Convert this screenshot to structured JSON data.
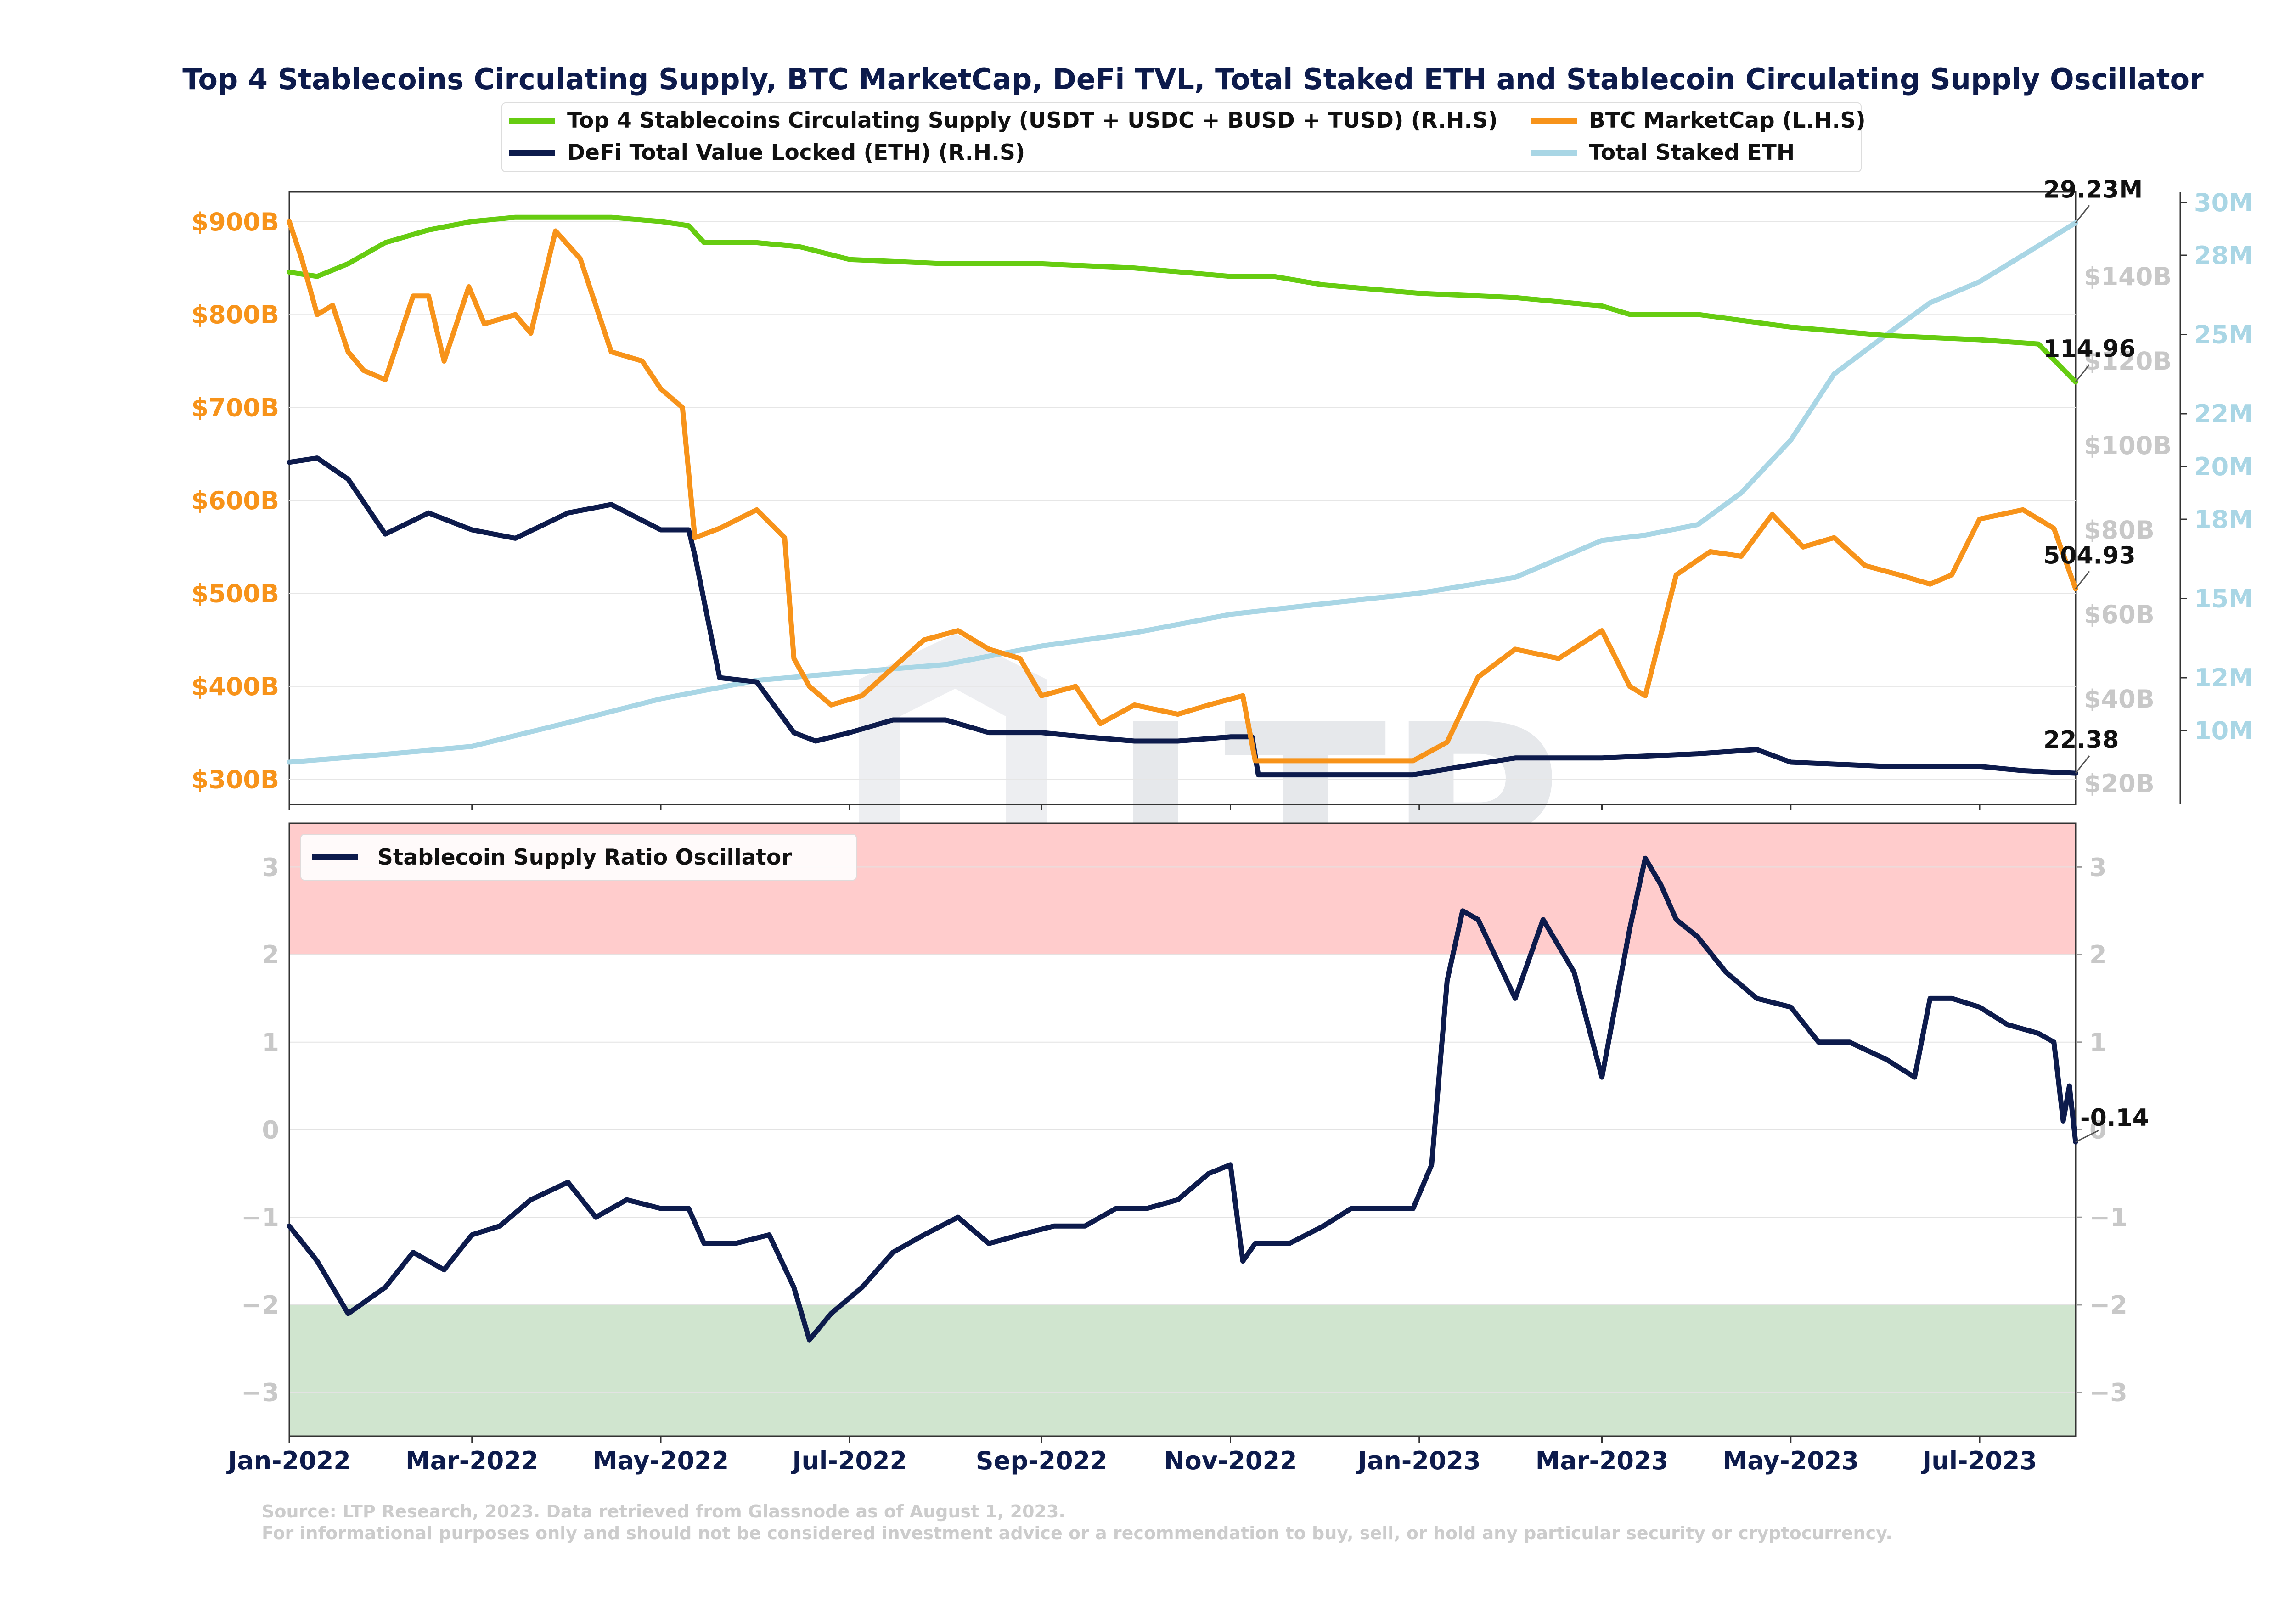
{
  "title": "Top 4 Stablecoins Circulating Supply, BTC MarketCap, DeFi TVL, Total Staked ETH and Stablecoin Circulating Supply Oscillator",
  "watermark": "LTP",
  "source_line1": "Source: LTP Research, 2023. Data retrieved from Glassnode as of August 1, 2023.",
  "source_line2": "For informational purposes only and should not be considered investment advice or a recommendation to buy, sell, or hold any particular security or cryptocurrency.",
  "colors": {
    "stable": "#66cc11",
    "btc": "#f7931a",
    "defi": "#0d1b4c",
    "staked": "#a9d6e5",
    "upper_band": "#ffcccc",
    "lower_band": "#d0e5cf"
  },
  "chart_data": [
    {
      "type": "line",
      "panel": "top",
      "x_ticks": [
        "Jan-2022",
        "Mar-2022",
        "May-2022",
        "Jul-2022",
        "Sep-2022",
        "Nov-2022",
        "Jan-2023",
        "Mar-2023",
        "May-2023",
        "Jul-2023"
      ],
      "xlim": [
        "2022-01-01",
        "2023-08-01"
      ],
      "left_axis": {
        "ticks": [
          "$300B",
          "$400B",
          "$500B",
          "$600B",
          "$700B",
          "$800B",
          "$900B"
        ],
        "ylim": [
          273,
          932
        ]
      },
      "right_axis_1": {
        "ticks": [
          "$20B",
          "$40B",
          "$60B",
          "$80B",
          "$100B",
          "$120B",
          "$140B"
        ],
        "ylim": [
          15,
          160
        ]
      },
      "right_axis_2": {
        "ticks": [
          "10M",
          "12M",
          "15M",
          "18M",
          "20M",
          "22M",
          "25M",
          "28M",
          "30M"
        ],
        "ylim": [
          7.2,
          30.4
        ]
      },
      "legend": [
        {
          "label": "Top 4 Stablecoins Circulating Supply (USDT + USDC + BUSD + TUSD) (R.H.S)",
          "color_key": "stable"
        },
        {
          "label": "BTC MarketCap (L.H.S)",
          "color_key": "btc"
        },
        {
          "label": "DeFi Total Value Locked (ETH) (R.H.S)",
          "color_key": "defi"
        },
        {
          "label": "Total Staked ETH",
          "color_key": "staked"
        }
      ],
      "series": [
        {
          "name": "Top 4 Stablecoins Circulating Supply (USDT + USDC + BUSD + TUSD) (R.H.S)",
          "axis": "right_axis_1",
          "color_key": "stable",
          "x": [
            "2022-01-01",
            "2022-01-10",
            "2022-01-20",
            "2022-02-01",
            "2022-02-15",
            "2022-03-01",
            "2022-03-15",
            "2022-04-01",
            "2022-04-15",
            "2022-05-01",
            "2022-05-10",
            "2022-05-15",
            "2022-06-01",
            "2022-06-15",
            "2022-07-01",
            "2022-08-01",
            "2022-09-01",
            "2022-10-01",
            "2022-11-01",
            "2022-11-15",
            "2022-12-01",
            "2023-01-01",
            "2023-02-01",
            "2023-03-01",
            "2023-03-10",
            "2023-04-01",
            "2023-05-01",
            "2023-06-01",
            "2023-07-01",
            "2023-07-20",
            "2023-08-01"
          ],
          "y": [
            141,
            140,
            143,
            148,
            151,
            153,
            154,
            154,
            154,
            153,
            152,
            148,
            148,
            147,
            144,
            143,
            143,
            142,
            140,
            140,
            138,
            136,
            135,
            133,
            131,
            131,
            128,
            126,
            125,
            124,
            115
          ]
        },
        {
          "name": "BTC MarketCap (L.H.S)",
          "axis": "left_axis",
          "color_key": "btc",
          "x": [
            "2022-01-01",
            "2022-01-05",
            "2022-01-10",
            "2022-01-15",
            "2022-01-20",
            "2022-01-25",
            "2022-02-01",
            "2022-02-10",
            "2022-02-15",
            "2022-02-20",
            "2022-02-28",
            "2022-03-05",
            "2022-03-15",
            "2022-03-20",
            "2022-03-28",
            "2022-04-05",
            "2022-04-15",
            "2022-04-25",
            "2022-05-01",
            "2022-05-08",
            "2022-05-12",
            "2022-05-20",
            "2022-06-01",
            "2022-06-10",
            "2022-06-13",
            "2022-06-18",
            "2022-06-25",
            "2022-07-05",
            "2022-07-15",
            "2022-07-25",
            "2022-08-05",
            "2022-08-15",
            "2022-08-25",
            "2022-09-01",
            "2022-09-12",
            "2022-09-20",
            "2022-10-01",
            "2022-10-15",
            "2022-10-25",
            "2022-11-05",
            "2022-11-09",
            "2022-11-20",
            "2022-12-01",
            "2022-12-15",
            "2022-12-30",
            "2023-01-10",
            "2023-01-20",
            "2023-02-01",
            "2023-02-15",
            "2023-03-01",
            "2023-03-10",
            "2023-03-15",
            "2023-03-25",
            "2023-04-05",
            "2023-04-15",
            "2023-04-25",
            "2023-05-05",
            "2023-05-15",
            "2023-05-25",
            "2023-06-05",
            "2023-06-15",
            "2023-06-22",
            "2023-07-01",
            "2023-07-15",
            "2023-07-25",
            "2023-08-01"
          ],
          "y": [
            900,
            860,
            800,
            810,
            760,
            740,
            730,
            820,
            820,
            750,
            830,
            790,
            800,
            780,
            890,
            860,
            760,
            750,
            720,
            700,
            560,
            570,
            590,
            560,
            430,
            400,
            380,
            390,
            420,
            450,
            460,
            440,
            430,
            390,
            400,
            360,
            380,
            370,
            380,
            390,
            320,
            320,
            320,
            320,
            320,
            340,
            410,
            440,
            430,
            460,
            400,
            390,
            520,
            545,
            540,
            585,
            550,
            560,
            530,
            520,
            510,
            520,
            580,
            590,
            570,
            505
          ]
        },
        {
          "name": "DeFi Total Value Locked (ETH) (R.H.S)",
          "axis": "right_axis_1",
          "color_key": "defi",
          "x": [
            "2022-01-01",
            "2022-01-10",
            "2022-01-20",
            "2022-02-01",
            "2022-02-15",
            "2022-03-01",
            "2022-03-15",
            "2022-04-01",
            "2022-04-15",
            "2022-05-01",
            "2022-05-10",
            "2022-05-12",
            "2022-05-20",
            "2022-06-01",
            "2022-06-13",
            "2022-06-20",
            "2022-07-01",
            "2022-07-15",
            "2022-08-01",
            "2022-08-15",
            "2022-09-01",
            "2022-09-15",
            "2022-10-01",
            "2022-10-15",
            "2022-11-01",
            "2022-11-08",
            "2022-11-10",
            "2022-12-01",
            "2022-12-30",
            "2023-01-15",
            "2023-02-01",
            "2023-03-01",
            "2023-04-01",
            "2023-04-20",
            "2023-05-01",
            "2023-06-01",
            "2023-07-01",
            "2023-07-15",
            "2023-08-01"
          ],
          "y": [
            96,
            97,
            92,
            79,
            84,
            80,
            78,
            84,
            86,
            80,
            80,
            74,
            45,
            44,
            32,
            30,
            32,
            35,
            35,
            32,
            32,
            31,
            30,
            30,
            31,
            31,
            22,
            22,
            22,
            24,
            26,
            26,
            27,
            28,
            25,
            24,
            24,
            23,
            22.38
          ]
        },
        {
          "name": "Total Staked ETH",
          "axis": "right_axis_2",
          "color_key": "staked",
          "x": [
            "2022-01-01",
            "2022-02-01",
            "2022-03-01",
            "2022-04-01",
            "2022-05-01",
            "2022-06-01",
            "2022-07-01",
            "2022-08-01",
            "2022-09-01",
            "2022-10-01",
            "2022-11-01",
            "2022-12-01",
            "2023-01-01",
            "2023-02-01",
            "2023-03-01",
            "2023-03-15",
            "2023-04-01",
            "2023-04-15",
            "2023-05-01",
            "2023-05-15",
            "2023-06-01",
            "2023-06-15",
            "2023-07-01",
            "2023-07-15",
            "2023-08-01"
          ],
          "y": [
            8.8,
            9.1,
            9.4,
            10.3,
            11.2,
            11.9,
            12.2,
            12.5,
            13.2,
            13.7,
            14.4,
            14.8,
            15.2,
            15.8,
            17.2,
            17.4,
            17.8,
            19.0,
            21.0,
            23.5,
            25.0,
            26.2,
            27.0,
            28.0,
            29.23
          ]
        }
      ],
      "end_labels": [
        "29.23M",
        "114.96",
        "504.93",
        "22.38"
      ]
    },
    {
      "type": "line",
      "panel": "bottom",
      "x_ticks": [
        "Jan-2022",
        "Mar-2022",
        "May-2022",
        "Jul-2022",
        "Sep-2022",
        "Nov-2022",
        "Jan-2023",
        "Mar-2023",
        "May-2023",
        "Jul-2023"
      ],
      "xlim": [
        "2022-01-01",
        "2023-08-01"
      ],
      "y_ticks": [
        "3",
        "2",
        "1",
        "0",
        "−1",
        "−2",
        "−3"
      ],
      "ylim": [
        -3.5,
        3.5
      ],
      "bands": [
        {
          "from": 2,
          "to": 3.5,
          "color_key": "upper_band"
        },
        {
          "from": -3.5,
          "to": -2,
          "color_key": "lower_band"
        }
      ],
      "legend": [
        {
          "label": "Stablecoin Supply Ratio Oscillator",
          "color_key": "defi"
        }
      ],
      "series": [
        {
          "name": "Stablecoin Supply Ratio Oscillator",
          "color_key": "defi",
          "x": [
            "2022-01-01",
            "2022-01-10",
            "2022-01-20",
            "2022-02-01",
            "2022-02-10",
            "2022-02-20",
            "2022-03-01",
            "2022-03-10",
            "2022-03-20",
            "2022-04-01",
            "2022-04-10",
            "2022-04-20",
            "2022-05-01",
            "2022-05-10",
            "2022-05-15",
            "2022-05-25",
            "2022-06-05",
            "2022-06-13",
            "2022-06-18",
            "2022-06-25",
            "2022-07-05",
            "2022-07-15",
            "2022-07-25",
            "2022-08-05",
            "2022-08-15",
            "2022-08-25",
            "2022-09-05",
            "2022-09-15",
            "2022-09-25",
            "2022-10-05",
            "2022-10-15",
            "2022-10-25",
            "2022-11-01",
            "2022-11-05",
            "2022-11-09",
            "2022-11-20",
            "2022-12-01",
            "2022-12-10",
            "2022-12-20",
            "2022-12-30",
            "2023-01-05",
            "2023-01-10",
            "2023-01-15",
            "2023-01-20",
            "2023-02-01",
            "2023-02-10",
            "2023-02-20",
            "2023-03-01",
            "2023-03-10",
            "2023-03-15",
            "2023-03-20",
            "2023-03-25",
            "2023-04-01",
            "2023-04-10",
            "2023-04-20",
            "2023-05-01",
            "2023-05-10",
            "2023-05-20",
            "2023-06-01",
            "2023-06-10",
            "2023-06-15",
            "2023-06-22",
            "2023-07-01",
            "2023-07-10",
            "2023-07-20",
            "2023-07-25",
            "2023-07-28",
            "2023-07-30",
            "2023-08-01"
          ],
          "y": [
            -1.1,
            -1.5,
            -2.1,
            -1.8,
            -1.4,
            -1.6,
            -1.2,
            -1.1,
            -0.8,
            -0.6,
            -1.0,
            -0.8,
            -0.9,
            -0.9,
            -1.3,
            -1.3,
            -1.2,
            -1.8,
            -2.4,
            -2.1,
            -1.8,
            -1.4,
            -1.2,
            -1.0,
            -1.3,
            -1.2,
            -1.1,
            -1.1,
            -0.9,
            -0.9,
            -0.8,
            -0.5,
            -0.4,
            -1.5,
            -1.3,
            -1.3,
            -1.1,
            -0.9,
            -0.9,
            -0.9,
            -0.4,
            1.7,
            2.5,
            2.4,
            1.5,
            2.4,
            1.8,
            0.6,
            2.3,
            3.1,
            2.8,
            2.4,
            2.2,
            1.8,
            1.5,
            1.4,
            1.0,
            1.0,
            0.8,
            0.6,
            1.5,
            1.5,
            1.4,
            1.2,
            1.1,
            1.0,
            0.1,
            0.5,
            -0.14
          ]
        }
      ],
      "end_labels": [
        "-0.14"
      ]
    }
  ]
}
